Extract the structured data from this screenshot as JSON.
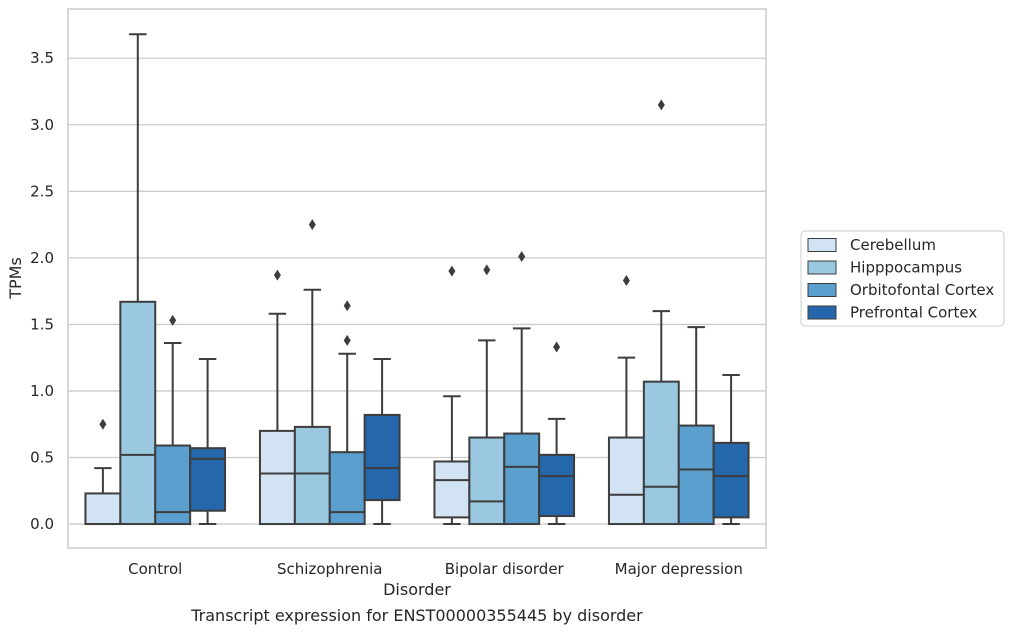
{
  "caption": "Transcript expression for ENST00000355445 by disorder",
  "chart_data": {
    "type": "box",
    "xlabel": "Disorder",
    "ylabel": "TPMs",
    "ylim": [
      -0.18,
      3.87
    ],
    "y_ticks": [
      "0.0",
      "0.5",
      "1.0",
      "1.5",
      "2.0",
      "2.5",
      "3.0",
      "3.5"
    ],
    "y_tick_values": [
      0,
      0.5,
      1.0,
      1.5,
      2.0,
      2.5,
      3.0,
      3.5
    ],
    "grid": true,
    "legend_position": "right",
    "categories": [
      "Control",
      "Schizophrenia",
      "Bipolar disorder",
      "Major depression"
    ],
    "series": [
      {
        "name": "Cerebellum",
        "color": "#d2e3f3",
        "boxes": [
          {
            "whislo": 0.0,
            "q1": 0.0,
            "med": 0.0,
            "q3": 0.23,
            "whishi": 0.42,
            "fliers": [
              0.75
            ]
          },
          {
            "whislo": 0.0,
            "q1": 0.0,
            "med": 0.38,
            "q3": 0.7,
            "whishi": 1.58,
            "fliers": [
              1.87
            ]
          },
          {
            "whislo": 0.0,
            "q1": 0.05,
            "med": 0.33,
            "q3": 0.47,
            "whishi": 0.96,
            "fliers": [
              1.9
            ]
          },
          {
            "whislo": 0.0,
            "q1": 0.0,
            "med": 0.22,
            "q3": 0.65,
            "whishi": 1.25,
            "fliers": [
              1.83
            ]
          }
        ]
      },
      {
        "name": "Hipppocampus",
        "color": "#9ac8e0",
        "boxes": [
          {
            "whislo": 0.0,
            "q1": 0.0,
            "med": 0.52,
            "q3": 1.67,
            "whishi": 3.68,
            "fliers": []
          },
          {
            "whislo": 0.0,
            "q1": 0.0,
            "med": 0.38,
            "q3": 0.73,
            "whishi": 1.76,
            "fliers": [
              2.25
            ]
          },
          {
            "whislo": 0.0,
            "q1": 0.0,
            "med": 0.17,
            "q3": 0.65,
            "whishi": 1.38,
            "fliers": [
              1.91
            ]
          },
          {
            "whislo": 0.0,
            "q1": 0.0,
            "med": 0.28,
            "q3": 1.07,
            "whishi": 1.6,
            "fliers": [
              3.15
            ]
          }
        ]
      },
      {
        "name": "Orbitofontal Cortex",
        "color": "#5a9fce",
        "boxes": [
          {
            "whislo": 0.0,
            "q1": 0.0,
            "med": 0.09,
            "q3": 0.59,
            "whishi": 1.36,
            "fliers": [
              1.53
            ]
          },
          {
            "whislo": 0.0,
            "q1": 0.0,
            "med": 0.09,
            "q3": 0.54,
            "whishi": 1.28,
            "fliers": [
              1.38,
              1.64
            ]
          },
          {
            "whislo": 0.0,
            "q1": 0.0,
            "med": 0.43,
            "q3": 0.68,
            "whishi": 1.47,
            "fliers": [
              2.01
            ]
          },
          {
            "whislo": 0.0,
            "q1": 0.0,
            "med": 0.41,
            "q3": 0.74,
            "whishi": 1.48,
            "fliers": []
          }
        ]
      },
      {
        "name": "Prefrontal Cortex",
        "color": "#2467aa",
        "boxes": [
          {
            "whislo": 0.0,
            "q1": 0.1,
            "med": 0.49,
            "q3": 0.57,
            "whishi": 1.24,
            "fliers": []
          },
          {
            "whislo": 0.0,
            "q1": 0.18,
            "med": 0.42,
            "q3": 0.82,
            "whishi": 1.24,
            "fliers": []
          },
          {
            "whislo": 0.0,
            "q1": 0.06,
            "med": 0.36,
            "q3": 0.52,
            "whishi": 0.79,
            "fliers": [
              1.33
            ]
          },
          {
            "whislo": 0.0,
            "q1": 0.05,
            "med": 0.36,
            "q3": 0.61,
            "whishi": 1.12,
            "fliers": []
          }
        ]
      }
    ]
  }
}
